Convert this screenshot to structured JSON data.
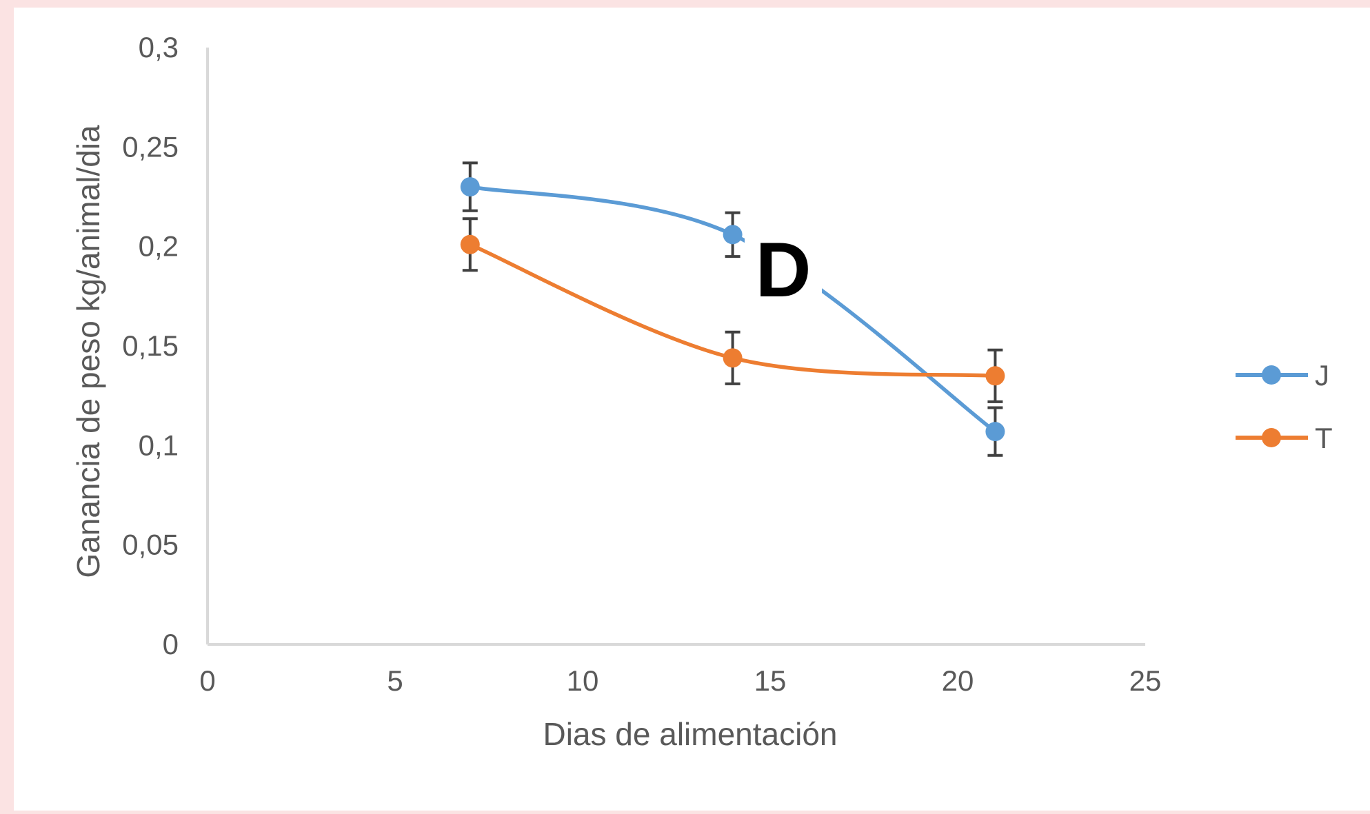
{
  "chart_data": {
    "type": "line",
    "panel_label": "D",
    "xlabel": "Dias de alimentación",
    "ylabel": "Ganancia de peso kg/animal/dia",
    "xlim": [
      0,
      25
    ],
    "ylim": [
      0,
      0.3
    ],
    "x_ticks": [
      0,
      5,
      10,
      15,
      20,
      25
    ],
    "x_tick_labels": [
      "0",
      "5",
      "10",
      "15",
      "20",
      "25"
    ],
    "y_ticks": [
      0,
      0.05,
      0.1,
      0.15,
      0.2,
      0.25,
      0.3
    ],
    "y_tick_labels": [
      "0",
      "0,05",
      "0,1",
      "0,15",
      "0,2",
      "0,25",
      "0,3"
    ],
    "grid": false,
    "smoothed": true,
    "error_bars": true,
    "legend_position": "right",
    "series": [
      {
        "name": "J",
        "color": "#5b9bd5",
        "x": [
          7,
          14,
          21
        ],
        "y": [
          0.23,
          0.206,
          0.107
        ],
        "error": [
          0.012,
          0.011,
          0.012
        ]
      },
      {
        "name": "T",
        "color": "#ed7d31",
        "x": [
          7,
          14,
          21
        ],
        "y": [
          0.201,
          0.144,
          0.135
        ],
        "error": [
          0.013,
          0.013,
          0.013
        ]
      }
    ]
  }
}
